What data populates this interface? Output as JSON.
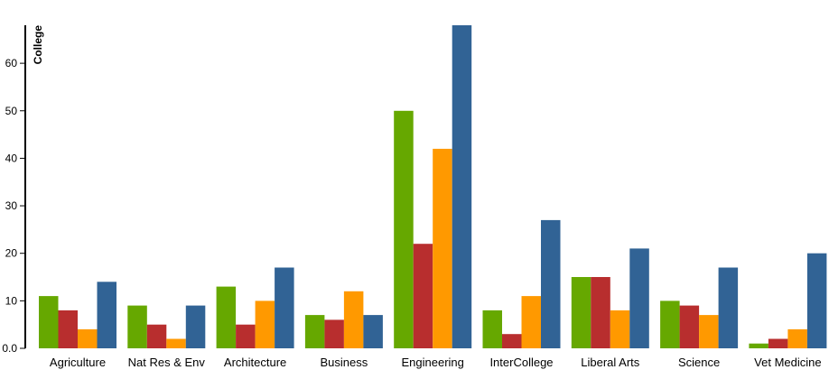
{
  "chart_data": {
    "type": "bar",
    "ylabel": "College",
    "xlabel": "",
    "ylim": [
      0,
      68
    ],
    "yticks": [
      "0.0",
      "10",
      "20",
      "30",
      "40",
      "50",
      "60"
    ],
    "grid": false,
    "categories": [
      "Agriculture",
      "Nat Res & Env",
      "Architecture",
      "Business",
      "Engineering",
      "InterCollege",
      "Liberal Arts",
      "Science",
      "Vet Medicine"
    ],
    "series": [
      {
        "color": "#66a800",
        "values": [
          11,
          9,
          13,
          7,
          50,
          8,
          15,
          10,
          1
        ]
      },
      {
        "color": "#b82e2e",
        "values": [
          8,
          5,
          5,
          6,
          22,
          3,
          15,
          9,
          2
        ]
      },
      {
        "color": "#ff9900",
        "values": [
          4,
          2,
          10,
          12,
          42,
          11,
          8,
          7,
          4
        ]
      },
      {
        "color": "#316395",
        "values": [
          14,
          9,
          17,
          7,
          68,
          27,
          21,
          17,
          20
        ]
      }
    ]
  }
}
